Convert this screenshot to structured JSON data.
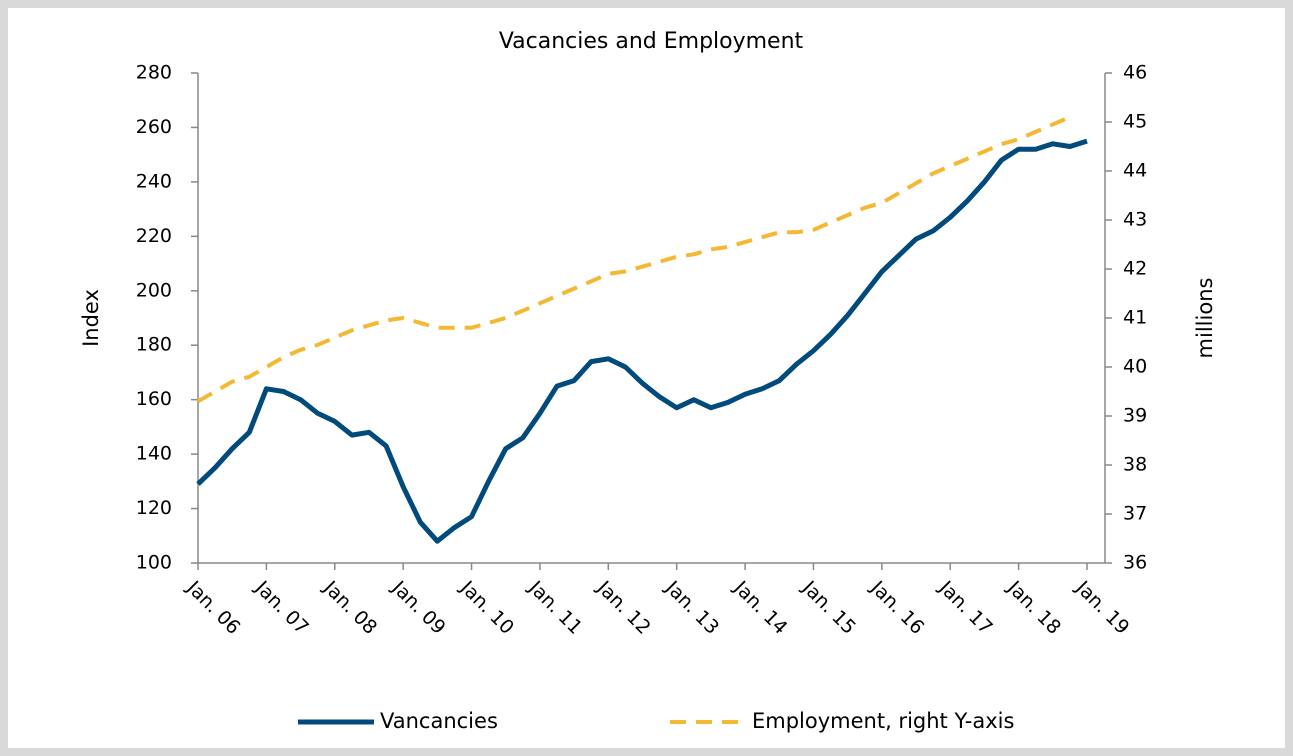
{
  "chart_data": {
    "type": "line",
    "title": "Vacancies and Employment",
    "y_label": "Index",
    "y2_label": "millions",
    "categories": [
      "Jan. 06",
      null,
      null,
      null,
      "Jan. 07",
      null,
      null,
      null,
      "Jan. 08",
      null,
      null,
      null,
      "Jan. 09",
      null,
      null,
      null,
      "Jan. 10",
      null,
      null,
      null,
      "Jan. 11",
      null,
      null,
      null,
      "Jan. 12",
      null,
      null,
      null,
      "Jan. 13",
      null,
      null,
      null,
      "Jan. 14",
      null,
      null,
      null,
      "Jan. 15",
      null,
      null,
      null,
      "Jan. 16",
      null,
      null,
      null,
      "Jan. 17",
      null,
      null,
      null,
      "Jan. 18",
      null,
      null,
      null,
      "Jan. 19"
    ],
    "series": [
      {
        "name": "Vancancies",
        "color": "#004a7c",
        "dashed": false,
        "values": [
          129,
          135,
          142,
          148,
          164,
          163,
          160,
          155,
          152,
          147,
          148,
          143,
          128,
          115,
          108,
          113,
          117,
          130,
          142,
          146,
          155,
          165,
          167,
          174,
          175,
          172,
          166,
          161,
          157,
          160,
          157,
          159,
          162,
          164,
          167,
          173,
          178,
          184,
          191,
          199,
          207,
          213,
          219,
          222,
          227,
          233,
          240,
          248,
          252,
          252,
          254,
          253,
          255
        ]
      },
      {
        "name": "Employment, right Y-axis",
        "color": "#f5b835",
        "dashed": true,
        "axis": "y2",
        "values": [
          39.3,
          39.5,
          39.7,
          39.8,
          40.0,
          40.2,
          40.35,
          40.45,
          40.6,
          40.75,
          40.85,
          40.95,
          41.0,
          40.9,
          40.8,
          40.8,
          40.8,
          40.9,
          41.0,
          41.15,
          41.3,
          41.45,
          41.6,
          41.75,
          41.9,
          41.95,
          42.05,
          42.15,
          42.25,
          42.3,
          42.4,
          42.45,
          42.55,
          42.65,
          42.75,
          42.75,
          42.8,
          42.95,
          43.1,
          43.25,
          43.35,
          43.55,
          43.75,
          43.95,
          44.1,
          44.25,
          44.4,
          44.55,
          44.65,
          44.8,
          44.95,
          45.1,
          null
        ]
      }
    ],
    "ylim": [
      100,
      280
    ],
    "yticks": [
      100,
      120,
      140,
      160,
      180,
      200,
      220,
      240,
      260,
      280
    ],
    "y2lim": [
      36,
      46
    ],
    "y2ticks": [
      36,
      37,
      38,
      39,
      40,
      41,
      42,
      43,
      44,
      45,
      46
    ],
    "legend": "bottom"
  }
}
